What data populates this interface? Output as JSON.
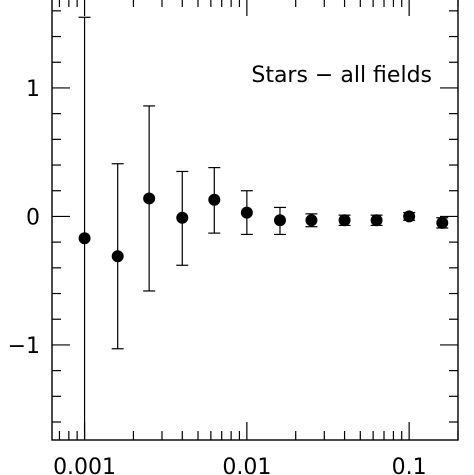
{
  "chart_data": {
    "type": "scatter",
    "title": "",
    "xlabel": "",
    "ylabel": "",
    "x_scale": "log",
    "xlim": [
      0.00063,
      0.2
    ],
    "ylim": [
      -1.74,
      1.7
    ],
    "grid": false,
    "annotation": "Stars − all fields",
    "x_ticks": [
      {
        "value": 0.001,
        "label": "0.001"
      },
      {
        "value": 0.01,
        "label": "0.01"
      },
      {
        "value": 0.1,
        "label": "0.1"
      }
    ],
    "y_ticks": [
      {
        "value": 1,
        "label": "1"
      },
      {
        "value": 0,
        "label": "0"
      },
      {
        "value": -1,
        "label": "−1"
      }
    ],
    "series": [
      {
        "points": [
          {
            "x": 0.001,
            "y": -0.17,
            "err_low": -1.9,
            "err_high": 1.55
          },
          {
            "x": 0.0016,
            "y": -0.31,
            "err_low": -1.03,
            "err_high": 0.41
          },
          {
            "x": 0.0025,
            "y": 0.14,
            "err_low": -0.58,
            "err_high": 0.86
          },
          {
            "x": 0.004,
            "y": -0.01,
            "err_low": -0.38,
            "err_high": 0.35
          },
          {
            "x": 0.0063,
            "y": 0.13,
            "err_low": -0.13,
            "err_high": 0.38
          },
          {
            "x": 0.01,
            "y": 0.03,
            "err_low": -0.14,
            "err_high": 0.2
          },
          {
            "x": 0.016,
            "y": -0.03,
            "err_low": -0.14,
            "err_high": 0.07
          },
          {
            "x": 0.025,
            "y": -0.03,
            "err_low": -0.08,
            "err_high": 0.02
          },
          {
            "x": 0.04,
            "y": -0.03,
            "err_low": -0.07,
            "err_high": 0.01
          },
          {
            "x": 0.063,
            "y": -0.03,
            "err_low": -0.07,
            "err_high": 0.01
          },
          {
            "x": 0.1,
            "y": 0.0,
            "err_low": -0.03,
            "err_high": 0.03
          },
          {
            "x": 0.16,
            "y": -0.05,
            "err_low": -0.09,
            "err_high": -0.01
          }
        ]
      }
    ]
  }
}
